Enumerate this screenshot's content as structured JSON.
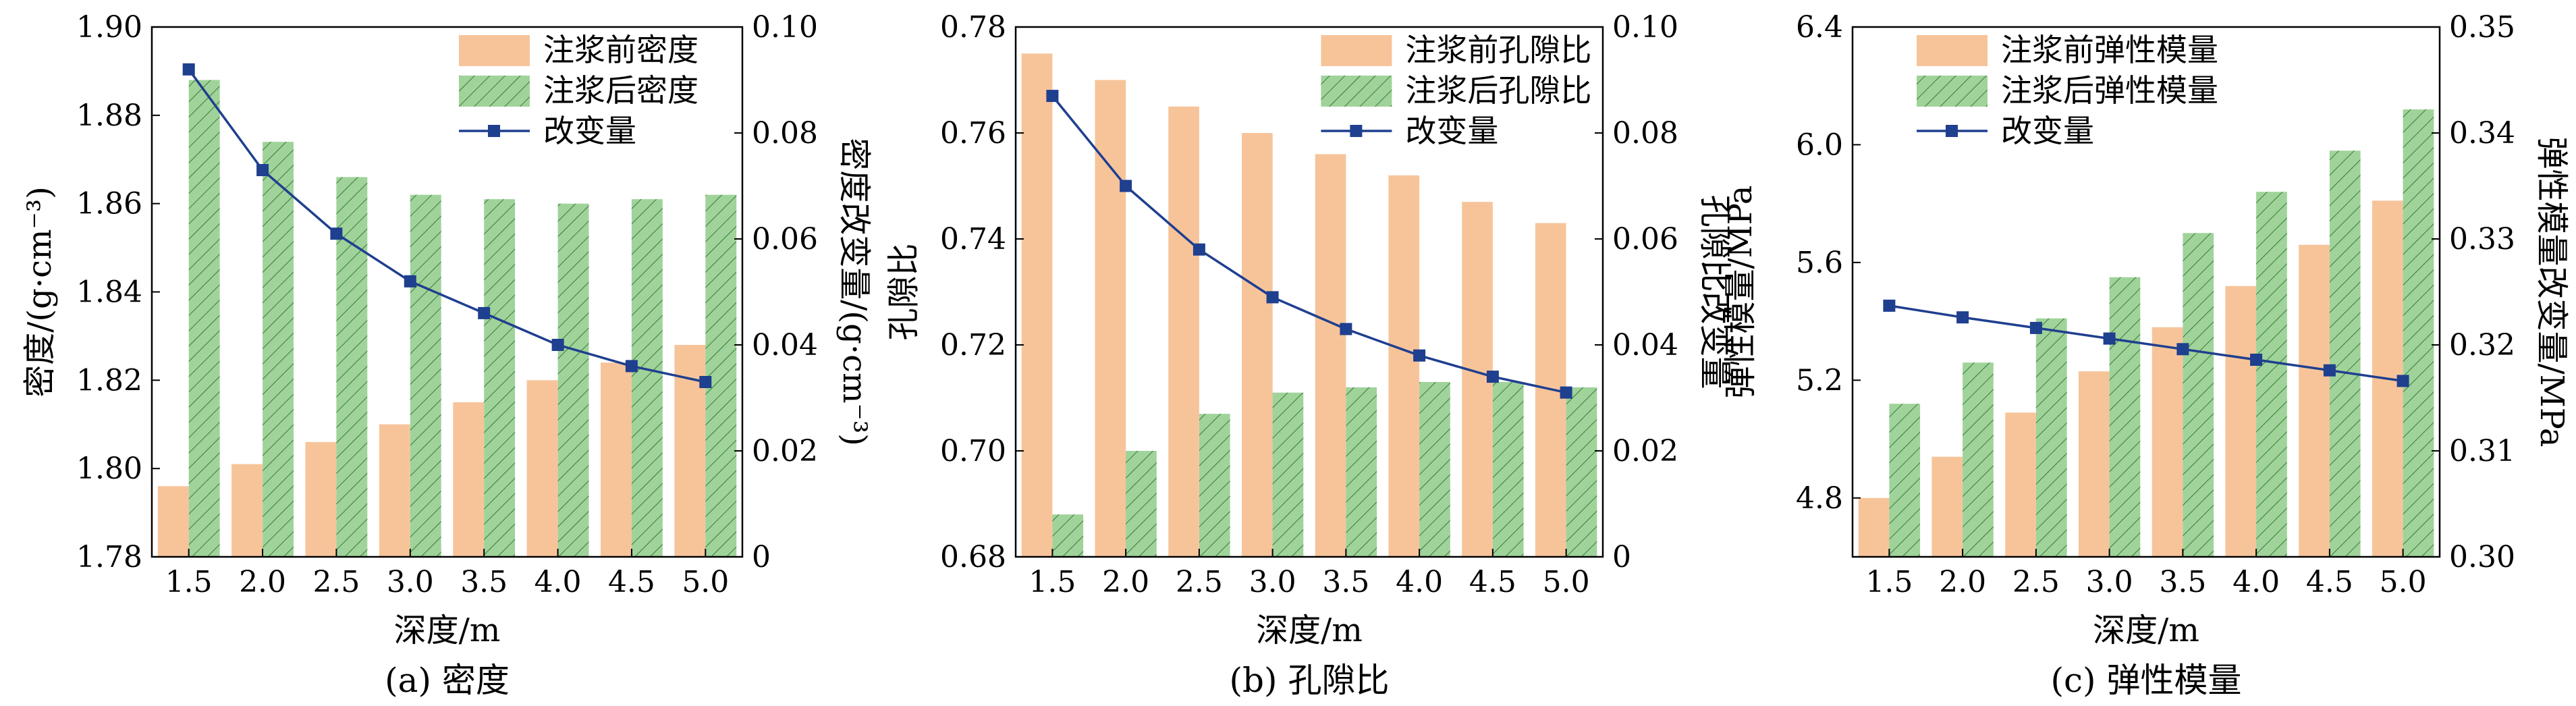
{
  "colors": {
    "before": "#f7c49a",
    "after": "#9fd39a",
    "after_hatch": "#3a7a3a",
    "line": "#1f3f8f",
    "axis": "#000000"
  },
  "chart_data": [
    {
      "type": "bar",
      "caption": "(a) 密度",
      "xlabel": "深度/m",
      "ylabel_left": "密度/(g·cm⁻³)",
      "ylabel_right": "密度改变量/(g·cm⁻³)",
      "categories": [
        "1.5",
        "2.0",
        "2.5",
        "3.0",
        "3.5",
        "4.0",
        "4.5",
        "5.0"
      ],
      "ylim_left": [
        1.78,
        1.9
      ],
      "yticks_left": [
        "1.78",
        "1.80",
        "1.82",
        "1.84",
        "1.86",
        "1.88",
        "1.90"
      ],
      "ylim_right": [
        0,
        0.1
      ],
      "yticks_right": [
        "0",
        "0.02",
        "0.04",
        "0.06",
        "0.08",
        "0.10"
      ],
      "legend": "top-right",
      "grid": false,
      "series": [
        {
          "name": "注浆前密度",
          "kind": "bar",
          "axis": "left",
          "values": [
            1.796,
            1.801,
            1.806,
            1.81,
            1.815,
            1.82,
            1.824,
            1.828
          ]
        },
        {
          "name": "注浆后密度",
          "kind": "bar-hatched",
          "axis": "left",
          "values": [
            1.888,
            1.874,
            1.866,
            1.862,
            1.861,
            1.86,
            1.861,
            1.862
          ]
        },
        {
          "name": "改变量",
          "kind": "line",
          "axis": "right",
          "values": [
            0.092,
            0.073,
            0.061,
            0.052,
            0.046,
            0.04,
            0.036,
            0.033
          ]
        }
      ]
    },
    {
      "type": "bar",
      "caption": "(b) 孔隙比",
      "xlabel": "深度/m",
      "ylabel_left": "孔隙比",
      "ylabel_right": "孔隙比改变量",
      "categories": [
        "1.5",
        "2.0",
        "2.5",
        "3.0",
        "3.5",
        "4.0",
        "4.5",
        "5.0"
      ],
      "ylim_left": [
        0.68,
        0.78
      ],
      "yticks_left": [
        "0.68",
        "0.70",
        "0.72",
        "0.74",
        "0.76",
        "0.78"
      ],
      "ylim_right": [
        0,
        0.1
      ],
      "yticks_right": [
        "0",
        "0.02",
        "0.04",
        "0.06",
        "0.08",
        "0.10"
      ],
      "legend": "top-right",
      "grid": false,
      "series": [
        {
          "name": "注浆前孔隙比",
          "kind": "bar",
          "axis": "left",
          "values": [
            0.775,
            0.77,
            0.765,
            0.76,
            0.756,
            0.752,
            0.747,
            0.743
          ]
        },
        {
          "name": "注浆后孔隙比",
          "kind": "bar-hatched",
          "axis": "left",
          "values": [
            0.688,
            0.7,
            0.707,
            0.711,
            0.712,
            0.713,
            0.713,
            0.712
          ]
        },
        {
          "name": "改变量",
          "kind": "line",
          "axis": "right",
          "values": [
            0.087,
            0.07,
            0.058,
            0.049,
            0.043,
            0.038,
            0.034,
            0.031
          ]
        }
      ]
    },
    {
      "type": "bar",
      "caption": "(c) 弹性模量",
      "xlabel": "深度/m",
      "ylabel_left": "弹性模量/MPa",
      "ylabel_right": "弹性模量改变量/MPa",
      "categories": [
        "1.5",
        "2.0",
        "2.5",
        "3.0",
        "3.5",
        "4.0",
        "4.5",
        "5.0"
      ],
      "ylim_left": [
        4.6,
        6.4
      ],
      "yticks_left": [
        "4.8",
        "5.2",
        "5.6",
        "6.0",
        "6.4"
      ],
      "ytick_values_left": [
        4.8,
        5.2,
        5.6,
        6.0,
        6.4
      ],
      "ylim_right": [
        0.3,
        0.35
      ],
      "yticks_right": [
        "0.30",
        "0.31",
        "0.32",
        "0.33",
        "0.34",
        "0.35"
      ],
      "legend": "top-left",
      "grid": false,
      "series": [
        {
          "name": "注浆前弹性模量",
          "kind": "bar",
          "axis": "left",
          "values": [
            4.8,
            4.94,
            5.09,
            5.23,
            5.38,
            5.52,
            5.66,
            5.81
          ]
        },
        {
          "name": "注浆后弹性模量",
          "kind": "bar-hatched",
          "axis": "left",
          "values": [
            5.12,
            5.26,
            5.41,
            5.55,
            5.7,
            5.84,
            5.98,
            6.12
          ]
        },
        {
          "name": "改变量",
          "kind": "line",
          "axis": "right",
          "values": [
            0.3237,
            0.3226,
            0.3216,
            0.3206,
            0.3196,
            0.3186,
            0.3176,
            0.3166
          ]
        }
      ]
    }
  ]
}
